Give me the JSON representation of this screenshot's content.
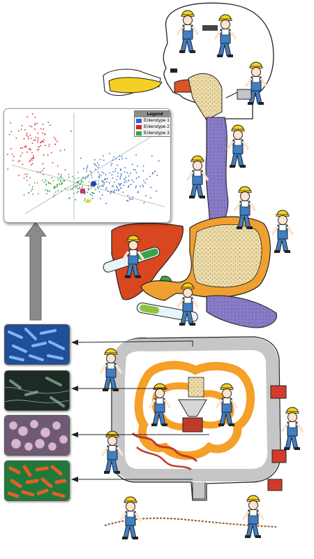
{
  "legend": {
    "title": "Legend",
    "entries": [
      {
        "label": "Enterotype 1",
        "color": "#2f64c8"
      },
      {
        "label": "Enterotype 2",
        "color": "#d8202a"
      },
      {
        "label": "Enterotype 3",
        "color": "#2fa83a"
      }
    ]
  },
  "micrographs": [
    {
      "icon": "blue-rod-bacteria-micrograph",
      "tone": "#2b6fc7"
    },
    {
      "icon": "dark-rod-bacteria-micrograph",
      "tone": "#2c3a30"
    },
    {
      "icon": "pink-cocci-bacteria-micrograph",
      "tone": "#b8a0b8"
    },
    {
      "icon": "orange-rod-bacteria-micrograph",
      "tone": "#d2521e"
    }
  ],
  "colors": {
    "worker_overalls": "#3f7fc4",
    "worker_helmet": "#f5d21a",
    "liver": "#d8471f",
    "stomach_contents": "#e8d7a6",
    "stomach_wall": "#f0a030",
    "esophagus": "#8b7cc8",
    "pancreas": "#7a6bb8",
    "colon": "#c9c9c9",
    "small_intestine": "#f5a028",
    "arrow": "#888888"
  }
}
